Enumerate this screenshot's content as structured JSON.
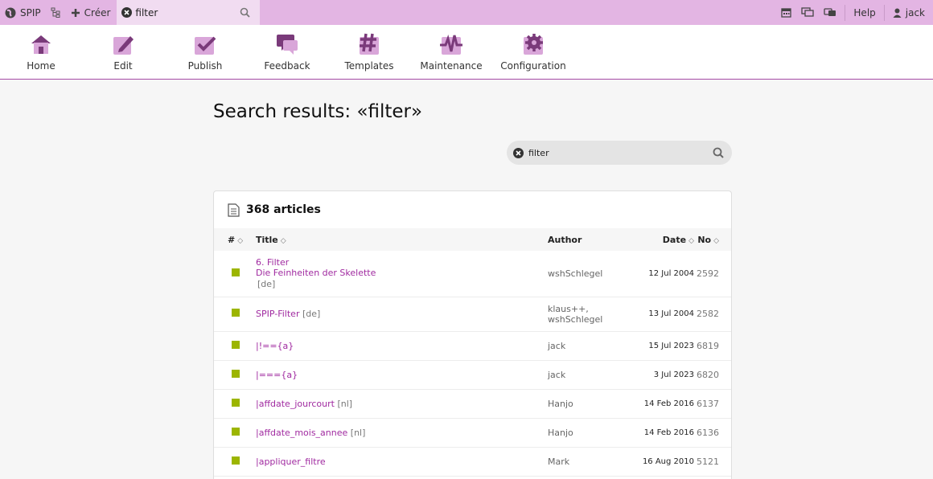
{
  "topbar": {
    "site_label": "SPIP",
    "create_label": "Créer",
    "search_value": "filter",
    "help_label": "Help",
    "user_label": "jack"
  },
  "nav": {
    "items": [
      {
        "label": "Home",
        "icon": "home-icon"
      },
      {
        "label": "Edit",
        "icon": "pencil-icon"
      },
      {
        "label": "Publish",
        "icon": "checkmark-icon"
      },
      {
        "label": "Feedback",
        "icon": "speech-bubble-icon"
      },
      {
        "label": "Templates",
        "icon": "hash-icon"
      },
      {
        "label": "Maintenance",
        "icon": "pulse-icon"
      },
      {
        "label": "Configuration",
        "icon": "gear-icon"
      }
    ]
  },
  "main": {
    "title": "Search results: «filter»",
    "search_value": "filter"
  },
  "results": {
    "title": "368 articles",
    "columns": {
      "num": "#",
      "title": "Title",
      "author": "Author",
      "date": "Date",
      "no": "No"
    },
    "rows": [
      {
        "title_lines": [
          "6. Filter",
          "Die Feinheiten der Skelette"
        ],
        "lang": "[de]",
        "author": "wshSchlegel",
        "date": "12 Jul 2004",
        "no": "2592"
      },
      {
        "title": "SPIP-Filter",
        "lang": "[de]",
        "author_lines": [
          "klaus++,",
          "wshSchlegel"
        ],
        "date": "13 Jul 2004",
        "no": "2582"
      },
      {
        "title": "|!=={a}",
        "lang": "",
        "author": "jack",
        "date": "15 Jul 2023",
        "no": "6819"
      },
      {
        "title": "|==={a}",
        "lang": "",
        "author": "jack",
        "date": "3 Jul 2023",
        "no": "6820"
      },
      {
        "title": "|affdate_jourcourt",
        "lang": "[nl]",
        "author": "Hanjo",
        "date": "14 Feb 2016",
        "no": "6137"
      },
      {
        "title": "|affdate_mois_annee",
        "lang": "[nl]",
        "author": "Hanjo",
        "date": "14 Feb 2016",
        "no": "6136"
      },
      {
        "title": "|appliquer_filtre",
        "lang": "",
        "author": "Mark",
        "date": "16 Aug 2010",
        "no": "5121"
      }
    ]
  },
  "colors": {
    "topbar": "#e3b5e3",
    "accent": "#a02aa0",
    "status_published": "#9cb500"
  }
}
